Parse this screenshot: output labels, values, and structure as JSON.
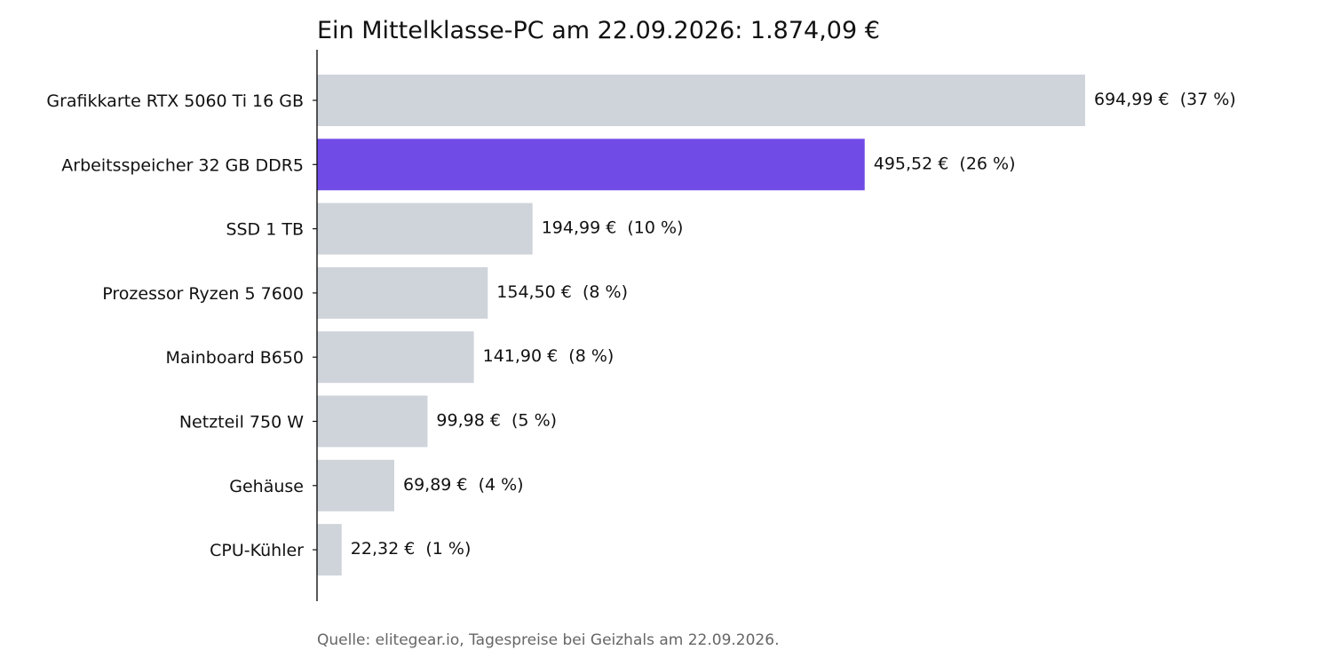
{
  "chart_data": {
    "type": "bar",
    "orientation": "horizontal",
    "title": "Ein Mittelklasse-PC am 22.09.2026: 1.874,09 €",
    "source": "Quelle: elitegear.io, Tagespreise bei Geizhals am 22.09.2026.",
    "xlabel": "",
    "ylabel": "",
    "categories": [
      "Grafikkarte RTX 5060 Ti 16 GB",
      "Arbeitsspeicher 32 GB DDR5",
      "SSD 1 TB",
      "Prozessor Ryzen 5 7600",
      "Mainboard B650",
      "Netzteil 750 W",
      "Gehäuse",
      "CPU-Kühler"
    ],
    "values": [
      694.99,
      495.52,
      194.99,
      154.5,
      141.9,
      99.98,
      69.89,
      22.32
    ],
    "value_labels": [
      "694,99 €  (37 %)",
      "495,52 €  (26 %)",
      "194,99 €  (10 %)",
      "154,50 €  (8 %)",
      "141,90 €  (8 %)",
      "99,98 €  (5 %)",
      "69,89 €  (4 %)",
      "22,32 €  (1 %)"
    ],
    "highlight_index": 1,
    "colors": {
      "bar": "#cfd4db",
      "highlight": "#714be6",
      "axis": "#111111",
      "text": "#111111",
      "source": "#666666"
    },
    "grid": false,
    "legend": "none"
  }
}
